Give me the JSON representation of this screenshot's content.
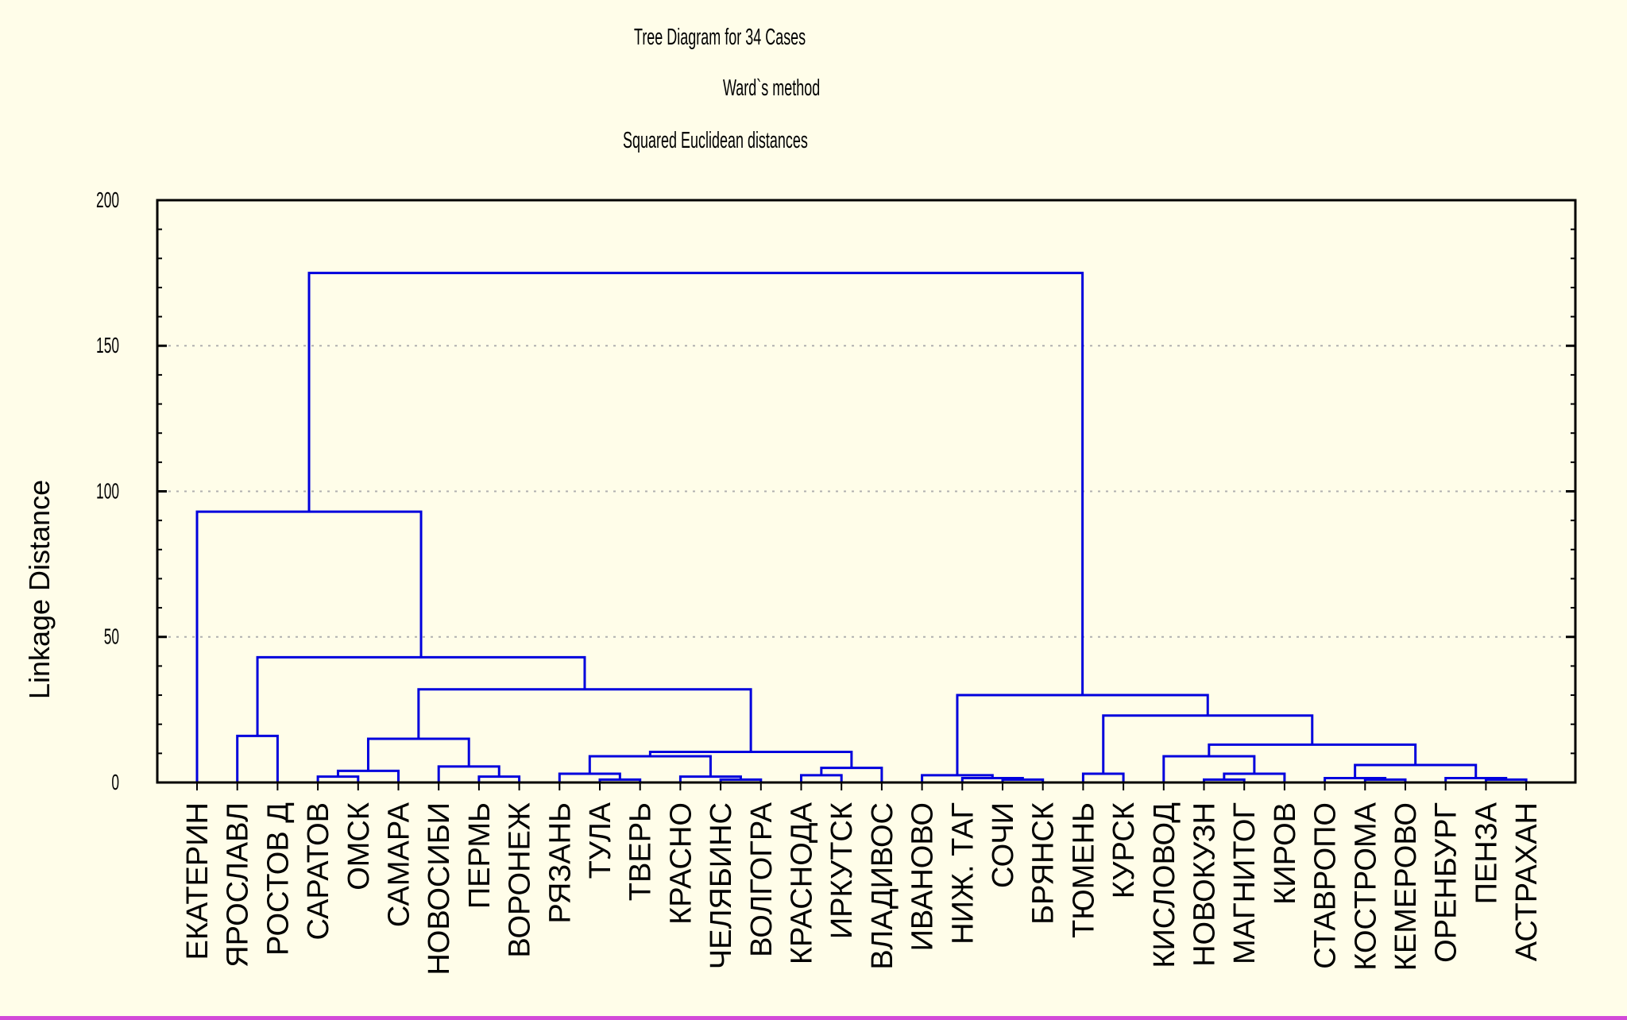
{
  "colors": {
    "background": "#fffde9",
    "link": "#0000dd",
    "frame": "#000000",
    "grid": "#b0b0b0",
    "border": "#d24ad8"
  },
  "titles": {
    "title": "Tree Diagram for 34 Cases",
    "subtitle": "Ward`s method",
    "subtitle2": "Squared Euclidean distances"
  },
  "chart_data": {
    "type": "dendrogram",
    "title": "Tree Diagram for 34 Cases",
    "method": "Ward`s method",
    "metric": "Squared Euclidean distances",
    "ylabel": "Linkage Distance",
    "ylim": [
      0,
      200
    ],
    "yticks": [
      0,
      50,
      100,
      150,
      200
    ],
    "grid": true,
    "leaves": [
      "ЕКАТЕРИН",
      "ЯРОСЛАВЛ",
      "РОСТОВ Д",
      "САРАТОВ",
      "ОМСК",
      "САМАРА",
      "НОВОСИБИ",
      "ПЕРМЬ",
      "ВОРОНЕЖ",
      "РЯЗАНЬ",
      "ТУЛА",
      "ТВЕРЬ",
      "КРАСНО",
      "ЧЕЛЯБИНС",
      "ВОЛГОГРА",
      "КРАСНОДА",
      "ИРКУТСК",
      "ВЛАДИВОС",
      "ИВАНОВО",
      "НИЖ. ТАГ",
      "СОЧИ",
      "БРЯНСК",
      "ТЮМЕНЬ",
      "КУРСК",
      "КИСЛОВОД",
      "НОВОКУЗН",
      "МАГНИТОГ",
      "КИРОВ",
      "СТАВРОПО",
      "КОСТРОМА",
      "КЕМЕРОВО",
      "ОРЕНБУРГ",
      "ПЕНЗА",
      "АСТРАХАН"
    ],
    "merges": [
      {
        "id": "c1",
        "a": 1,
        "b": 2,
        "h": 16
      },
      {
        "id": "c2",
        "a": 3,
        "b": 4,
        "h": 2
      },
      {
        "id": "c3",
        "a": "c2",
        "b": 5,
        "h": 4
      },
      {
        "id": "c4",
        "a": 7,
        "b": 8,
        "h": 2
      },
      {
        "id": "c5",
        "a": 6,
        "b": "c4",
        "h": 5.5
      },
      {
        "id": "c6",
        "a": "c3",
        "b": "c5",
        "h": 15
      },
      {
        "id": "c7",
        "a": 10,
        "b": 11,
        "h": 1
      },
      {
        "id": "c8",
        "a": 9,
        "b": "c7",
        "h": 3
      },
      {
        "id": "c9",
        "a": 13,
        "b": 14,
        "h": 1
      },
      {
        "id": "c10",
        "a": 12,
        "b": "c9",
        "h": 2
      },
      {
        "id": "c11",
        "a": "c8",
        "b": "c10",
        "h": 9
      },
      {
        "id": "c12",
        "a": 15,
        "b": 16,
        "h": 2.5
      },
      {
        "id": "c13",
        "a": "c12",
        "b": 17,
        "h": 5
      },
      {
        "id": "c14",
        "a": "c11",
        "b": "c13",
        "h": 10.5
      },
      {
        "id": "c15",
        "a": "c6",
        "b": "c14",
        "h": 32
      },
      {
        "id": "c16",
        "a": "c1",
        "b": "c15",
        "h": 43
      },
      {
        "id": "c17",
        "a": 0,
        "b": "c16",
        "h": 93
      },
      {
        "id": "c18",
        "a": 20,
        "b": 21,
        "h": 1
      },
      {
        "id": "c19",
        "a": 19,
        "b": "c18",
        "h": 1.5
      },
      {
        "id": "c20",
        "a": 18,
        "b": "c19",
        "h": 2.5
      },
      {
        "id": "c21",
        "a": 22,
        "b": 23,
        "h": 3
      },
      {
        "id": "c22",
        "a": 25,
        "b": 26,
        "h": 1
      },
      {
        "id": "c23",
        "a": "c22",
        "b": 27,
        "h": 3
      },
      {
        "id": "c24",
        "a": 24,
        "b": "c23",
        "h": 9
      },
      {
        "id": "c25",
        "a": 29,
        "b": 30,
        "h": 1
      },
      {
        "id": "c26",
        "a": 28,
        "b": "c25",
        "h": 1.5
      },
      {
        "id": "c27",
        "a": 32,
        "b": 33,
        "h": 1
      },
      {
        "id": "c28",
        "a": 31,
        "b": "c27",
        "h": 1.5
      },
      {
        "id": "c29",
        "a": "c26",
        "b": "c28",
        "h": 6
      },
      {
        "id": "c30",
        "a": "c24",
        "b": "c29",
        "h": 13
      },
      {
        "id": "c31",
        "a": "c21",
        "b": "c30",
        "h": 23
      },
      {
        "id": "c32",
        "a": "c20",
        "b": "c31",
        "h": 30
      },
      {
        "id": "c33",
        "a": "c17",
        "b": "c32",
        "h": 175
      }
    ]
  }
}
